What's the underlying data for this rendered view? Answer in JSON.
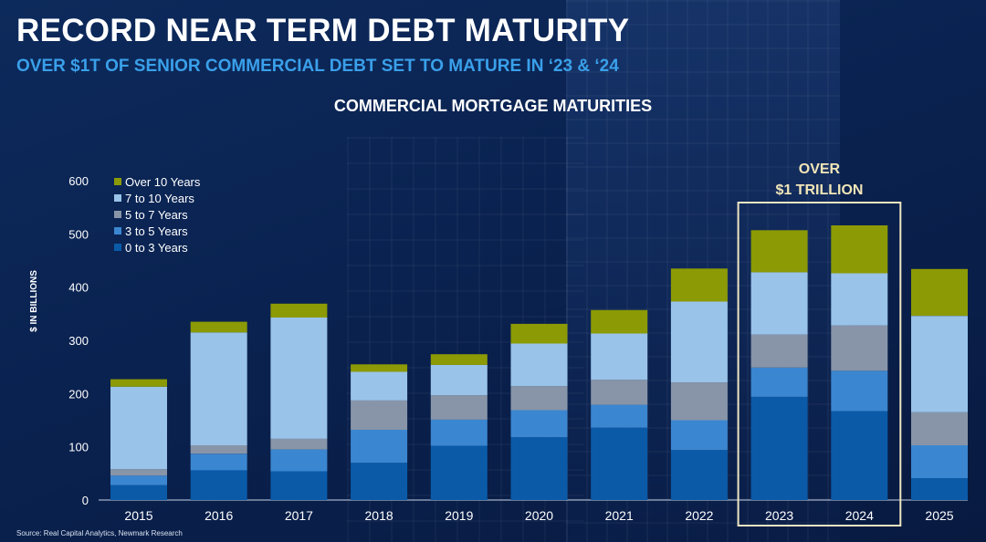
{
  "header": {
    "title": "RECORD NEAR TERM DEBT MATURITY",
    "subtitle": "OVER $1T OF SENIOR COMMERCIAL DEBT SET TO MATURE IN ‘23 & ‘24"
  },
  "footer": {
    "source": "Source: Real Capital Analytics, Newmark Research"
  },
  "colors": {
    "accent_blue": "#3aa0ea",
    "highlight_box": "#efe6c2",
    "callout_text": "#f2e6b8"
  },
  "chart_data": {
    "type": "bar",
    "stacked": true,
    "title": "COMMERCIAL MORTGAGE MATURITIES",
    "xlabel": "",
    "ylabel": "$ IN BILLIONS",
    "ylim": [
      0,
      600
    ],
    "yticks": [
      0,
      100,
      200,
      300,
      400,
      500,
      600
    ],
    "grid": false,
    "legend_position": "top-left",
    "categories": [
      "2015",
      "2016",
      "2017",
      "2018",
      "2019",
      "2020",
      "2021",
      "2022",
      "2023",
      "2024",
      "2025"
    ],
    "series": [
      {
        "name": "0 to 3 Years",
        "color": "#0a5aa8",
        "values": [
          28,
          56,
          54,
          70,
          102,
          118,
          136,
          94,
          194,
          167,
          41
        ]
      },
      {
        "name": "3 to 5 Years",
        "color": "#3b86d0",
        "values": [
          18,
          31,
          41,
          62,
          49,
          51,
          43,
          56,
          55,
          76,
          62
        ]
      },
      {
        "name": "5 to 7 Years",
        "color": "#8895a8",
        "values": [
          12,
          16,
          20,
          55,
          46,
          45,
          47,
          71,
          62,
          85,
          62
        ]
      },
      {
        "name": "7 to 10 Years",
        "color": "#99c3e8",
        "values": [
          155,
          212,
          228,
          54,
          57,
          80,
          87,
          152,
          117,
          98,
          181
        ]
      },
      {
        "name": "Over 10 Years",
        "color": "#8c9a05",
        "values": [
          14,
          20,
          26,
          14,
          20,
          37,
          44,
          62,
          79,
          90,
          88
        ]
      }
    ],
    "annotation": {
      "text_lines": [
        "OVER",
        "$1 TRILLION"
      ],
      "categories": [
        "2023",
        "2024"
      ]
    }
  }
}
